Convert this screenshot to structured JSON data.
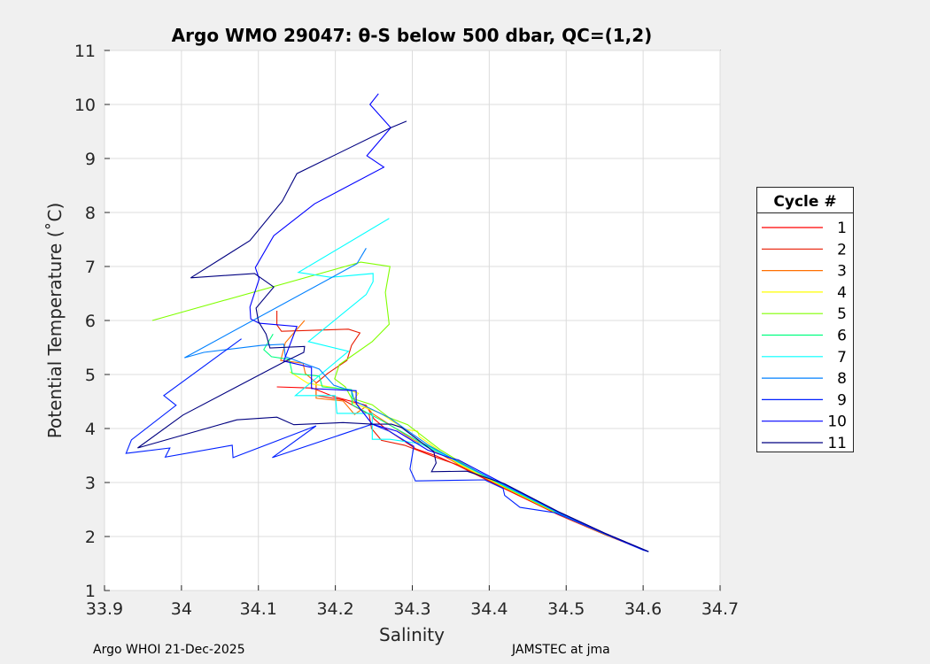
{
  "chart_data": {
    "type": "line",
    "title": "Argo WMO 29047: θ-S below 500 dbar,  QC=(1,2)",
    "xlabel": "Salinity",
    "ylabel": "Potential Temperature (˚C)",
    "xlim": [
      33.9,
      34.7
    ],
    "ylim": [
      1,
      11
    ],
    "xticks": [
      "33.9",
      "34",
      "34.1",
      "34.2",
      "34.3",
      "34.4",
      "34.5",
      "34.6",
      "34.7"
    ],
    "yticks": [
      "1",
      "2",
      "3",
      "4",
      "5",
      "6",
      "7",
      "8",
      "9",
      "10",
      "11"
    ],
    "grid": true,
    "legend_title": "Cycle #",
    "legend_placement": "right",
    "tail": [
      [
        34.36,
        3.37
      ],
      [
        34.42,
        2.93
      ],
      [
        34.49,
        2.43
      ],
      [
        34.55,
        2.05
      ],
      [
        34.607,
        1.72
      ]
    ],
    "series": [
      {
        "name": "1",
        "color": "#ff0000",
        "points": [
          [
            34.124,
            4.77
          ],
          [
            34.17,
            4.75
          ],
          [
            34.198,
            4.59
          ],
          [
            34.24,
            4.43
          ],
          [
            34.25,
            4.18
          ],
          [
            34.265,
            4.0
          ],
          [
            34.305,
            3.62
          ],
          [
            34.33,
            3.5
          ]
        ]
      },
      {
        "name": "2",
        "color": "#e81a00",
        "points": [
          [
            34.124,
            6.18
          ],
          [
            34.124,
            5.92
          ],
          [
            34.13,
            5.8
          ],
          [
            34.217,
            5.84
          ],
          [
            34.232,
            5.77
          ],
          [
            34.221,
            5.54
          ],
          [
            34.215,
            5.26
          ],
          [
            34.19,
            5.02
          ],
          [
            34.175,
            4.84
          ],
          [
            34.175,
            4.61
          ],
          [
            34.21,
            4.53
          ],
          [
            34.244,
            4.26
          ],
          [
            34.247,
            4.0
          ],
          [
            34.26,
            3.78
          ],
          [
            34.29,
            3.69
          ],
          [
            34.328,
            3.48
          ]
        ]
      },
      {
        "name": "3",
        "color": "#ff7000",
        "points": [
          [
            34.16,
            6.0
          ],
          [
            34.135,
            5.59
          ],
          [
            34.129,
            5.26
          ],
          [
            34.158,
            5.21
          ],
          [
            34.161,
            5.02
          ],
          [
            34.175,
            4.85
          ],
          [
            34.175,
            4.56
          ],
          [
            34.21,
            4.51
          ],
          [
            34.225,
            4.26
          ],
          [
            34.24,
            4.41
          ],
          [
            34.248,
            4.28
          ],
          [
            34.3,
            3.8
          ],
          [
            34.34,
            3.5
          ]
        ]
      },
      {
        "name": "4",
        "color": "#ffff00",
        "points": [
          [
            34.141,
            5.05
          ],
          [
            34.164,
            4.84
          ],
          [
            34.221,
            4.7
          ],
          [
            34.23,
            4.65
          ],
          [
            34.221,
            4.48
          ],
          [
            34.259,
            4.28
          ],
          [
            34.291,
            3.98
          ],
          [
            34.307,
            3.95
          ],
          [
            34.309,
            3.85
          ],
          [
            34.337,
            3.57
          ]
        ]
      },
      {
        "name": "5",
        "color": "#80ff00",
        "points": [
          [
            33.962,
            6.0
          ],
          [
            34.233,
            7.08
          ],
          [
            34.271,
            7.0
          ],
          [
            34.265,
            6.52
          ],
          [
            34.27,
            5.93
          ],
          [
            34.248,
            5.61
          ],
          [
            34.205,
            5.18
          ],
          [
            34.199,
            4.92
          ],
          [
            34.213,
            4.77
          ],
          [
            34.221,
            4.56
          ],
          [
            34.248,
            4.44
          ],
          [
            34.27,
            4.2
          ],
          [
            34.294,
            4.07
          ],
          [
            34.336,
            3.61
          ],
          [
            34.36,
            3.4
          ]
        ]
      },
      {
        "name": "6",
        "color": "#00ff80",
        "points": [
          [
            34.119,
            5.75
          ],
          [
            34.107,
            5.46
          ],
          [
            34.117,
            5.33
          ],
          [
            34.14,
            5.28
          ],
          [
            34.144,
            5.02
          ],
          [
            34.179,
            4.97
          ],
          [
            34.183,
            4.77
          ],
          [
            34.221,
            4.72
          ],
          [
            34.222,
            4.44
          ],
          [
            34.26,
            4.15
          ],
          [
            34.31,
            3.75
          ],
          [
            34.345,
            3.5
          ]
        ]
      },
      {
        "name": "7",
        "color": "#00ffff",
        "points": [
          [
            34.27,
            7.89
          ],
          [
            34.152,
            6.89
          ],
          [
            34.194,
            6.8
          ],
          [
            34.249,
            6.87
          ],
          [
            34.249,
            6.72
          ],
          [
            34.24,
            6.48
          ],
          [
            34.165,
            5.61
          ],
          [
            34.217,
            5.43
          ],
          [
            34.148,
            4.61
          ],
          [
            34.2,
            4.61
          ],
          [
            34.202,
            4.28
          ],
          [
            34.248,
            4.28
          ],
          [
            34.248,
            3.8
          ],
          [
            34.271,
            3.8
          ],
          [
            34.31,
            3.72
          ],
          [
            34.35,
            3.45
          ]
        ]
      },
      {
        "name": "8",
        "color": "#0080ff",
        "points": [
          [
            34.24,
            7.34
          ],
          [
            34.228,
            7.05
          ],
          [
            34.004,
            5.31
          ],
          [
            34.029,
            5.41
          ],
          [
            34.104,
            5.54
          ],
          [
            34.133,
            5.56
          ],
          [
            34.135,
            5.33
          ],
          [
            34.179,
            5.1
          ],
          [
            34.198,
            4.8
          ],
          [
            34.221,
            4.7
          ],
          [
            34.225,
            4.51
          ],
          [
            34.27,
            4.2
          ],
          [
            34.32,
            3.7
          ],
          [
            34.355,
            3.42
          ]
        ]
      },
      {
        "name": "9",
        "color": "#0020ff",
        "points": [
          [
            34.078,
            5.66
          ],
          [
            33.977,
            4.61
          ],
          [
            33.993,
            4.43
          ],
          [
            33.935,
            3.79
          ],
          [
            33.928,
            3.54
          ],
          [
            33.985,
            3.64
          ],
          [
            33.979,
            3.47
          ],
          [
            34.066,
            3.69
          ],
          [
            34.067,
            3.46
          ],
          [
            34.175,
            4.05
          ],
          [
            34.118,
            3.46
          ],
          [
            34.248,
            4.08
          ],
          [
            34.27,
            3.95
          ],
          [
            34.302,
            3.67
          ],
          [
            34.297,
            3.25
          ],
          [
            34.304,
            3.03
          ],
          [
            34.394,
            3.05
          ],
          [
            34.418,
            2.89
          ],
          [
            34.42,
            2.76
          ],
          [
            34.44,
            2.54
          ],
          [
            34.486,
            2.44
          ],
          [
            34.55,
            2.05
          ],
          [
            34.6,
            1.75
          ]
        ]
      },
      {
        "name": "10",
        "color": "#0000ff",
        "points": [
          [
            34.256,
            10.2
          ],
          [
            34.245,
            10.0
          ],
          [
            34.272,
            9.57
          ],
          [
            34.241,
            9.05
          ],
          [
            34.263,
            8.84
          ],
          [
            34.173,
            8.16
          ],
          [
            34.12,
            7.57
          ],
          [
            34.096,
            6.98
          ],
          [
            34.101,
            6.77
          ],
          [
            34.089,
            6.25
          ],
          [
            34.09,
            6.03
          ],
          [
            34.101,
            5.95
          ],
          [
            34.15,
            5.89
          ],
          [
            34.133,
            5.25
          ],
          [
            34.169,
            5.13
          ],
          [
            34.169,
            4.74
          ],
          [
            34.227,
            4.7
          ],
          [
            34.227,
            4.46
          ],
          [
            34.248,
            4.08
          ],
          [
            34.28,
            3.95
          ],
          [
            34.32,
            3.6
          ],
          [
            34.35,
            3.45
          ]
        ]
      },
      {
        "name": "11",
        "color": "#000080",
        "points": [
          [
            34.2925,
            9.69
          ],
          [
            34.272,
            9.57
          ],
          [
            34.15,
            8.72
          ],
          [
            34.131,
            8.21
          ],
          [
            34.089,
            7.48
          ],
          [
            34.012,
            6.79
          ],
          [
            34.095,
            6.87
          ],
          [
            34.12,
            6.62
          ],
          [
            34.097,
            6.23
          ],
          [
            34.1,
            5.98
          ],
          [
            34.11,
            5.75
          ],
          [
            34.115,
            5.49
          ],
          [
            34.16,
            5.52
          ],
          [
            34.159,
            5.41
          ],
          [
            34.133,
            5.23
          ],
          [
            34.002,
            4.25
          ],
          [
            33.943,
            3.64
          ],
          [
            34.072,
            4.16
          ],
          [
            34.124,
            4.21
          ],
          [
            34.146,
            4.07
          ],
          [
            34.21,
            4.11
          ],
          [
            34.248,
            4.08
          ],
          [
            34.273,
            4.08
          ],
          [
            34.286,
            4.02
          ],
          [
            34.328,
            3.57
          ],
          [
            34.331,
            3.36
          ],
          [
            34.325,
            3.2
          ],
          [
            34.371,
            3.21
          ]
        ]
      }
    ]
  },
  "footer": {
    "left": "Argo WHOI 21-Dec-2025",
    "right": "JAMSTEC at jma"
  }
}
